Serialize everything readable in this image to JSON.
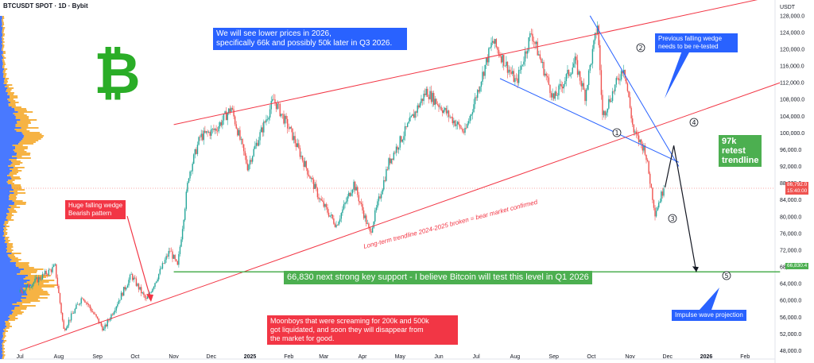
{
  "header": {
    "symbol": "BTCUSDT SPOT · 1D · Bybit",
    "currency": "USDT"
  },
  "colors": {
    "up": "#26a69a",
    "down": "#ef5350",
    "channel": "#f23645",
    "wedge": "#2962ff",
    "support": "#4caf50",
    "logo": "#2aad27",
    "volume_profile_orange": "#f5a623",
    "volume_profile_blue": "#2962ff"
  },
  "icons": {
    "logo": "bitcoin-logo-icon"
  },
  "notes": {
    "top_note": "We will see lower prices in 2026,\nspecifically 66k and possibly 50k later in Q3 2026.",
    "falling_wedge": "Huge falling wedge\nBearish pattern",
    "trendline": "Long-term trendline 2024-2025 broken = bear market confirmed",
    "support": "66,830 next strong key support - I believe Bitcoin will test this level in Q1 2026",
    "moonboys": "Moonboys that were screaming for 200k and 500k\ngot liquidated, and soon they will disappear from\nthe market for good.",
    "retest": "97k\nretest\ntrendline",
    "prev_wedge": "Previous falling wedge\nneeds to be re-tested",
    "impulse": "Impulse wave projection"
  },
  "wave_labels": [
    "①",
    "②",
    "③",
    "④",
    "⑤"
  ],
  "price_tags": {
    "current": "86,792.0",
    "countdown": "15:40:00",
    "support": "66,830.4"
  },
  "chart_data": {
    "type": "candlestick",
    "symbol": "BTCUSDT",
    "timeframe": "1D",
    "exchange": "Bybit",
    "x_ticks": [
      "Jul",
      "Aug",
      "Sep",
      "Oct",
      "Nov",
      "Dec",
      "2025",
      "Feb",
      "Mar",
      "Apr",
      "May",
      "Jun",
      "Jul",
      "Aug",
      "Sep",
      "Oct",
      "Nov",
      "Dec",
      "2026",
      "Feb"
    ],
    "y_ticks": [
      48000,
      52000,
      56000,
      60000,
      64000,
      68000,
      72000,
      76000,
      80000,
      84000,
      88000,
      92000,
      96000,
      100000,
      104000,
      108000,
      112000,
      116000,
      120000,
      124000,
      128000
    ],
    "ylim": [
      46000,
      131000
    ],
    "price_path": [
      [
        "2024-07-01",
        62000
      ],
      [
        "2024-07-29",
        68000
      ],
      [
        "2024-08-05",
        53000
      ],
      [
        "2024-08-20",
        61000
      ],
      [
        "2024-09-06",
        53000
      ],
      [
        "2024-09-28",
        66000
      ],
      [
        "2024-10-10",
        60000
      ],
      [
        "2024-10-29",
        72000
      ],
      [
        "2024-11-04",
        68000
      ],
      [
        "2024-11-13",
        90000
      ],
      [
        "2024-11-22",
        99000
      ],
      [
        "2024-12-05",
        101000
      ],
      [
        "2024-12-17",
        106000
      ],
      [
        "2024-12-30",
        92000
      ],
      [
        "2025-01-20",
        108000
      ],
      [
        "2025-02-03",
        100000
      ],
      [
        "2025-02-26",
        84000
      ],
      [
        "2025-03-11",
        78000
      ],
      [
        "2025-03-25",
        88000
      ],
      [
        "2025-04-07",
        76000
      ],
      [
        "2025-04-22",
        93000
      ],
      [
        "2025-05-22",
        110000
      ],
      [
        "2025-06-22",
        100000
      ],
      [
        "2025-07-14",
        122000
      ],
      [
        "2025-08-02",
        112000
      ],
      [
        "2025-08-14",
        124000
      ],
      [
        "2025-09-01",
        108000
      ],
      [
        "2025-09-18",
        117000
      ],
      [
        "2025-09-26",
        109000
      ],
      [
        "2025-10-06",
        126000
      ],
      [
        "2025-10-10",
        104000
      ],
      [
        "2025-10-27",
        116000
      ],
      [
        "2025-11-04",
        100000
      ],
      [
        "2025-11-13",
        96000
      ],
      [
        "2025-11-21",
        81000
      ],
      [
        "2025-11-28",
        86792
      ]
    ],
    "current_price": 86792.0,
    "support_level": 66830.4,
    "lines": [
      {
        "name": "Long-term trendline 2024-2025",
        "from": [
          "2024-07-01",
          48000
        ],
        "to": [
          "2026-03-01",
          112000
        ]
      },
      {
        "name": "upper channel",
        "from": [
          "2024-11-01",
          102000
        ],
        "to": [
          "2026-03-01",
          133000
        ]
      },
      {
        "name": "support 66,830",
        "from": [
          "2024-11-01",
          66830
        ],
        "to": [
          "2026-03-01",
          66830
        ]
      },
      {
        "name": "falling wedge upper",
        "from": [
          "2025-09-30",
          128000
        ],
        "to": [
          "2025-12-10",
          92000
        ]
      },
      {
        "name": "falling wedge lower",
        "from": [
          "2025-07-20",
          113000
        ],
        "to": [
          "2025-12-10",
          93000
        ]
      },
      {
        "name": "projection",
        "points": [
          [
            "2025-11-29",
            87000
          ],
          [
            "2025-12-06",
            97000
          ],
          [
            "2025-12-24",
            66830
          ]
        ]
      }
    ]
  }
}
